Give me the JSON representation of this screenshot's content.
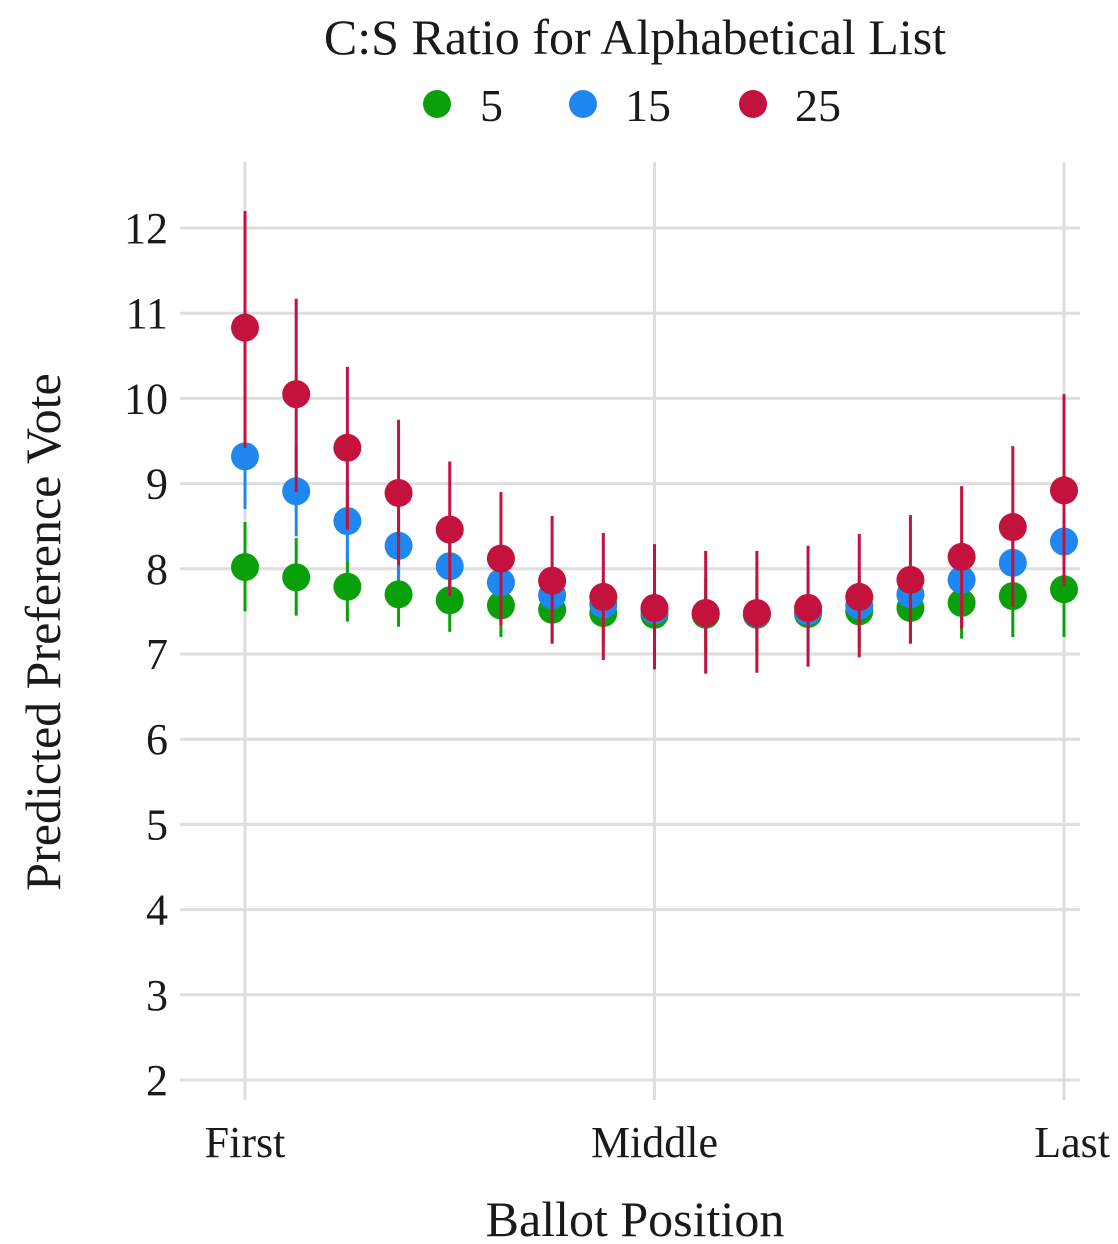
{
  "chart_data": {
    "type": "scatter",
    "legend_title": "C:S Ratio for Alphabetical List",
    "legend_position": "top",
    "xlabel": "Ballot Position",
    "ylabel": "Predicted Preference Vote",
    "x": [
      1,
      2,
      3,
      4,
      5,
      6,
      7,
      8,
      9,
      10,
      11,
      12,
      13,
      14,
      15,
      16,
      17
    ],
    "xlim": [
      1,
      17
    ],
    "x_ticks": [
      {
        "value": 1,
        "label": "First"
      },
      {
        "value": 9,
        "label": "Middle"
      },
      {
        "value": 17,
        "label": "Last"
      }
    ],
    "ylim": [
      2,
      12
    ],
    "y_ticks": [
      2,
      3,
      4,
      5,
      6,
      7,
      8,
      9,
      10,
      11,
      12
    ],
    "grid": true,
    "series": [
      {
        "name": "5",
        "color": "#0aa00a",
        "values": [
          8.02,
          7.9,
          7.79,
          7.7,
          7.63,
          7.57,
          7.52,
          7.48,
          7.46,
          7.46,
          7.46,
          7.47,
          7.5,
          7.54,
          7.6,
          7.68,
          7.76
        ],
        "lower": [
          7.5,
          7.45,
          7.38,
          7.32,
          7.26,
          7.2,
          7.14,
          7.09,
          7.06,
          7.03,
          7.02,
          7.04,
          7.08,
          7.13,
          7.18,
          7.2,
          7.2
        ],
        "upper": [
          8.55,
          8.36,
          8.2,
          8.08,
          7.99,
          7.93,
          7.9,
          7.87,
          7.86,
          7.88,
          7.9,
          7.9,
          7.92,
          7.96,
          8.02,
          8.16,
          8.32
        ]
      },
      {
        "name": "15",
        "color": "#1e88f0",
        "values": [
          9.32,
          8.91,
          8.56,
          8.27,
          8.03,
          7.84,
          7.69,
          7.58,
          7.51,
          7.48,
          7.47,
          7.5,
          7.57,
          7.7,
          7.87,
          8.07,
          8.32
        ],
        "lower": [
          8.7,
          8.38,
          8.08,
          7.87,
          7.68,
          7.54,
          7.42,
          7.34,
          7.28,
          7.25,
          7.25,
          7.28,
          7.34,
          7.45,
          7.58,
          7.72,
          7.9
        ],
        "upper": [
          9.96,
          9.44,
          9.05,
          8.68,
          8.39,
          8.16,
          7.98,
          7.84,
          7.76,
          7.72,
          7.71,
          7.74,
          7.82,
          7.96,
          8.16,
          8.42,
          8.76
        ]
      },
      {
        "name": "25",
        "color": "#c4123e",
        "values": [
          10.83,
          10.05,
          9.42,
          8.89,
          8.46,
          8.12,
          7.86,
          7.67,
          7.54,
          7.48,
          7.48,
          7.54,
          7.67,
          7.87,
          8.14,
          8.49,
          8.92
        ],
        "lower": [
          9.42,
          8.9,
          8.46,
          8.04,
          7.68,
          7.34,
          7.12,
          6.93,
          6.82,
          6.77,
          6.78,
          6.85,
          6.96,
          7.12,
          7.3,
          7.55,
          7.8
        ],
        "upper": [
          12.2,
          11.17,
          10.37,
          9.75,
          9.26,
          8.9,
          8.62,
          8.42,
          8.29,
          8.21,
          8.21,
          8.27,
          8.41,
          8.63,
          8.97,
          9.44,
          10.05
        ]
      }
    ]
  }
}
